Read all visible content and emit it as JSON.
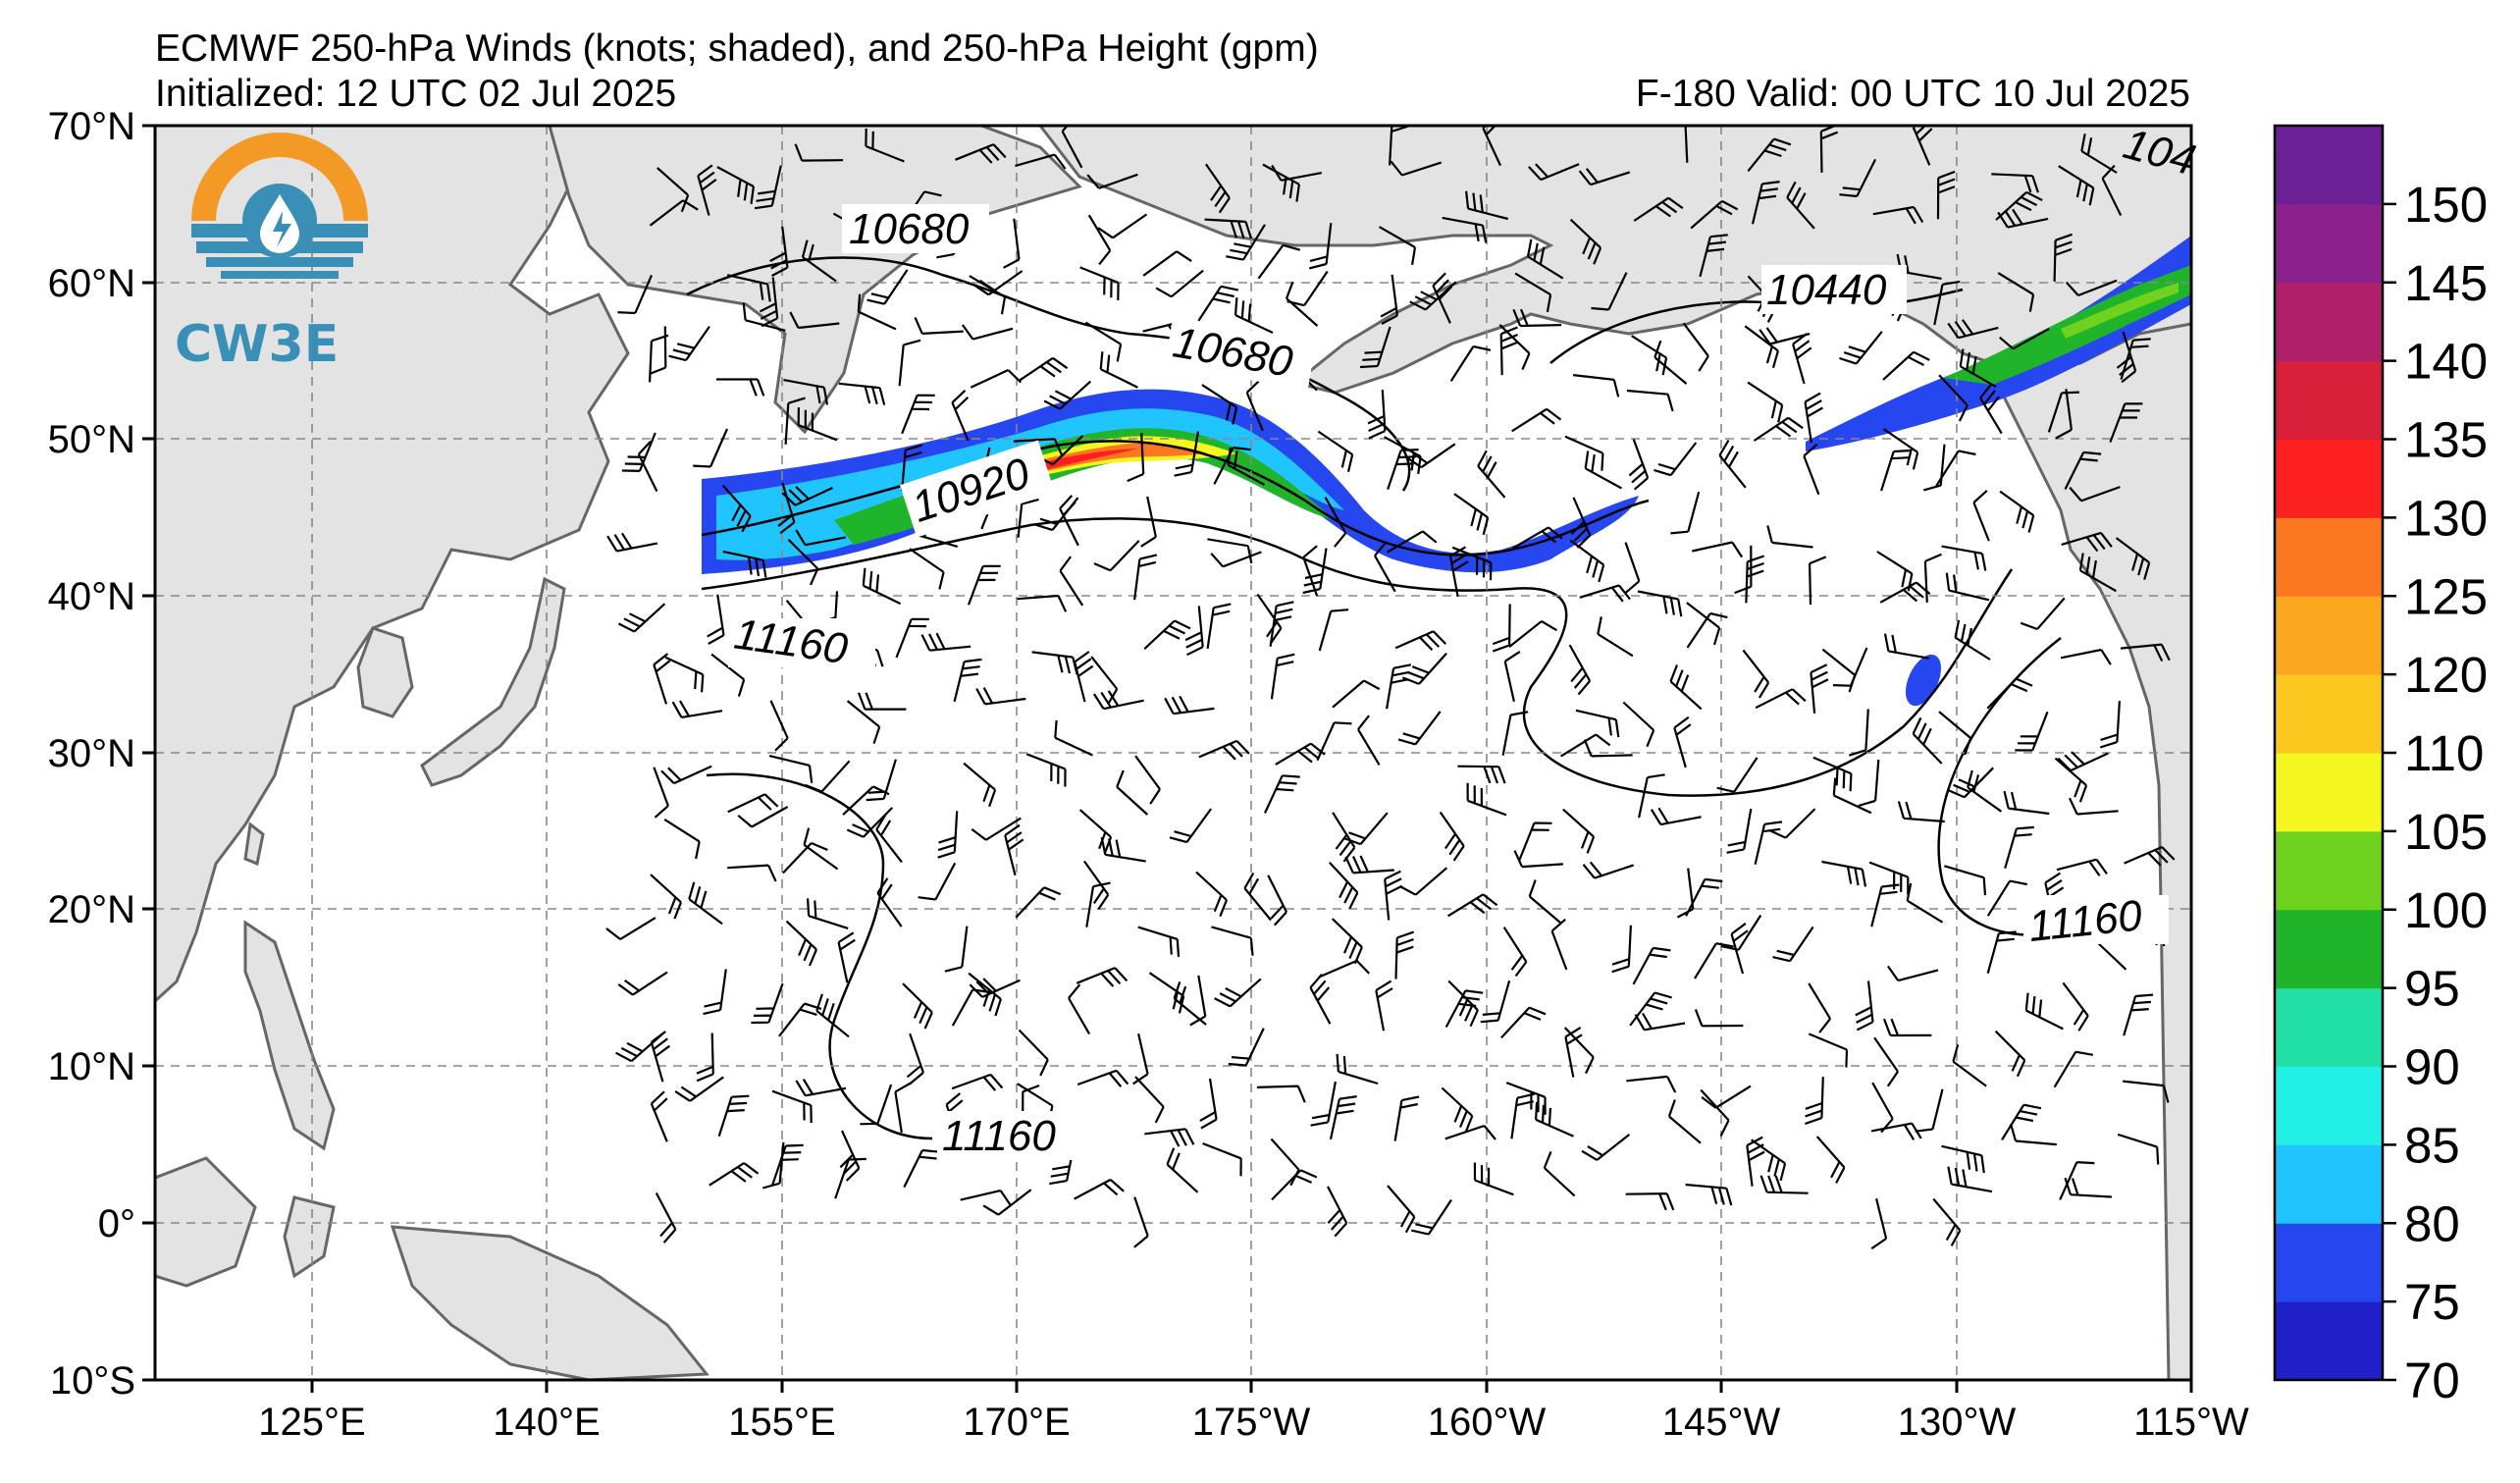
{
  "title": {
    "line1": "ECMWF 250-hPa Winds (knots; shaded), and 250-hPa Height (gpm)",
    "line2": "Initialized: 12 UTC 02 Jul 2025",
    "valid": "F-180  Valid: 00 UTC 10 Jul 2025"
  },
  "logo": {
    "text": "CW3E",
    "colors": {
      "orange": "#f39a26",
      "blue": "#3a8fb7"
    }
  },
  "map": {
    "lat_labels": [
      "70°N",
      "60°N",
      "50°N",
      "40°N",
      "30°N",
      "20°N",
      "10°N",
      "0°",
      "10°S"
    ],
    "lon_labels": [
      "125°E",
      "140°E",
      "155°E",
      "170°E",
      "175°W",
      "160°W",
      "145°W",
      "130°W",
      "115°W"
    ],
    "land_color": "#e3e3e3",
    "coast_color": "#666666",
    "grid_color": "#888888",
    "contour_labels": {
      "c1": "10680",
      "c2": "10680",
      "c3": "10440",
      "c4": "10920",
      "c5": "11160",
      "c6": "11160",
      "c7": "11160",
      "c8": "104"
    }
  },
  "colorbar": {
    "unit": "knots",
    "bins": [
      {
        "color": "#2020c8"
      },
      {
        "color": "#2646f0"
      },
      {
        "color": "#20c4ff"
      },
      {
        "color": "#20f0e6"
      },
      {
        "color": "#20e0a8"
      },
      {
        "color": "#1fb429"
      },
      {
        "color": "#6ed21f"
      },
      {
        "color": "#f5f51f"
      },
      {
        "color": "#fcc81f"
      },
      {
        "color": "#fca81f"
      },
      {
        "color": "#fc7820"
      },
      {
        "color": "#fc2020"
      },
      {
        "color": "#d8203a"
      },
      {
        "color": "#b0206a"
      },
      {
        "color": "#8c208c"
      },
      {
        "color": "#6c2096"
      }
    ],
    "labels": [
      "70",
      "75",
      "80",
      "85",
      "90",
      "95",
      "100",
      "105",
      "110",
      "120",
      "125",
      "130",
      "135",
      "140",
      "145",
      "150"
    ]
  }
}
